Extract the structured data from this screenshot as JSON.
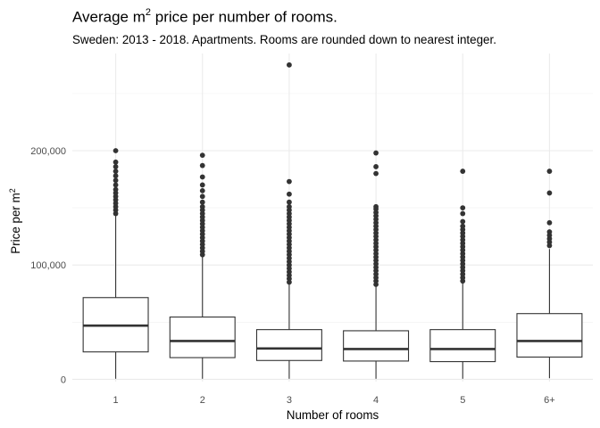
{
  "title": {
    "prefix": "Average m",
    "superscript": "2",
    "suffix": " price per number of rooms."
  },
  "subtitle": "Sweden: 2013 - 2018. Apartments. Rooms are rounded down to nearest integer.",
  "chart_data": {
    "type": "boxplot",
    "categories": [
      "1",
      "2",
      "3",
      "4",
      "5",
      "6+"
    ],
    "xlabel": "Number of rooms",
    "ylabel": {
      "prefix": "Price per m",
      "superscript": "2"
    },
    "ylim": [
      -2000,
      285000
    ],
    "yticks": [
      0,
      100000,
      200000
    ],
    "ytick_labels": [
      "0",
      "100,000",
      "200,000"
    ],
    "grid": true,
    "boxes": [
      {
        "category": "1",
        "q1": 24000,
        "median": 47000,
        "q3": 71500,
        "whisker_low": 500,
        "whisker_high": 143000,
        "outliers": [
          145000,
          148000,
          151000,
          154000,
          157000,
          160000,
          163000,
          166000,
          170000,
          174000,
          178000,
          182000,
          186000,
          190000,
          200000
        ]
      },
      {
        "category": "2",
        "q1": 19000,
        "median": 33500,
        "q3": 54500,
        "whisker_low": 500,
        "whisker_high": 107000,
        "outliers": [
          109000,
          112000,
          115000,
          118000,
          121000,
          124000,
          127000,
          130000,
          133000,
          136000,
          139000,
          142000,
          145000,
          148000,
          151000,
          155000,
          160000,
          165000,
          170000,
          177000,
          187000,
          196000
        ]
      },
      {
        "category": "3",
        "q1": 16500,
        "median": 27000,
        "q3": 43500,
        "whisker_low": 500,
        "whisker_high": 83000,
        "outliers": [
          85000,
          88000,
          91000,
          94000,
          97000,
          100000,
          103000,
          106000,
          109000,
          112000,
          115000,
          118000,
          121000,
          124000,
          127000,
          130000,
          133000,
          136000,
          139000,
          142000,
          145000,
          148000,
          151000,
          155000,
          162000,
          173000,
          275000
        ]
      },
      {
        "category": "4",
        "q1": 16000,
        "median": 26500,
        "q3": 42500,
        "whisker_low": 500,
        "whisker_high": 81000,
        "outliers": [
          83000,
          86000,
          89000,
          92000,
          95000,
          98000,
          101000,
          104000,
          107000,
          110000,
          113000,
          116000,
          119000,
          122000,
          125000,
          128000,
          131000,
          134000,
          137000,
          140000,
          143000,
          146000,
          149000,
          151000,
          180000,
          186000,
          198000
        ]
      },
      {
        "category": "5",
        "q1": 15500,
        "median": 26500,
        "q3": 43500,
        "whisker_low": 500,
        "whisker_high": 84000,
        "outliers": [
          86000,
          89000,
          92000,
          95000,
          98000,
          101000,
          104000,
          107000,
          110000,
          113000,
          116000,
          119000,
          122000,
          125000,
          128000,
          131000,
          134000,
          138000,
          145000,
          150000,
          182000
        ]
      },
      {
        "category": "6+",
        "q1": 19500,
        "median": 33500,
        "q3": 57500,
        "whisker_low": 1000,
        "whisker_high": 114000,
        "outliers": [
          117000,
          120000,
          123000,
          126000,
          129000,
          137000,
          163000,
          182000
        ]
      }
    ]
  }
}
